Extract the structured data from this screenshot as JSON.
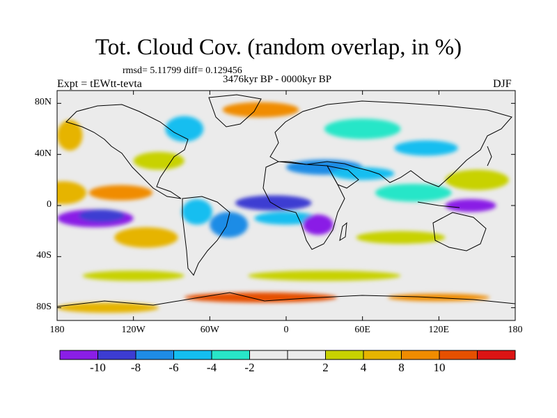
{
  "header": {
    "title": "Tot. Cloud Cov. (random overlap, in %)",
    "stats": "rmsd= 5.11799  diff= 0.129456",
    "experiment": "Expt = tEWtt-tevta",
    "period": "3476kyr BP - 0000kyr BP",
    "season": "DJF"
  },
  "axes": {
    "lat_ticks": [
      {
        "label": "80N",
        "lat": 80
      },
      {
        "label": "40N",
        "lat": 40
      },
      {
        "label": "0",
        "lat": 0
      },
      {
        "label": "40S",
        "lat": -40
      },
      {
        "label": "80S",
        "lat": -80
      }
    ],
    "lon_ticks": [
      {
        "label": "180",
        "lon": -180
      },
      {
        "label": "120W",
        "lon": -120
      },
      {
        "label": "60W",
        "lon": -60
      },
      {
        "label": "0",
        "lon": 0
      },
      {
        "label": "60E",
        "lon": 60
      },
      {
        "label": "120E",
        "lon": 120
      },
      {
        "label": "180",
        "lon": 180
      }
    ],
    "lat_range": [
      -90,
      90
    ],
    "lon_range": [
      -180,
      180
    ]
  },
  "colorbar": {
    "colors": [
      "#8a1ee6",
      "#3c3cd2",
      "#1e8ce6",
      "#14bef0",
      "#28e6c8",
      "#ebebeb",
      "#ebebeb",
      "#c8d200",
      "#e6b400",
      "#f08c00",
      "#e65000",
      "#dc1414"
    ],
    "labels": [
      "-10",
      "-8",
      "-6",
      "-4",
      "-2",
      "2",
      "4",
      "8",
      "10"
    ]
  },
  "map": {
    "background_color": "#ebebeb",
    "anomaly_regions": [
      {
        "lon": -175,
        "lat": 10,
        "rx": 18,
        "ry": 9,
        "level": "pos3"
      },
      {
        "lon": -150,
        "lat": -10,
        "rx": 30,
        "ry": 7,
        "level": "neg6"
      },
      {
        "lon": -145,
        "lat": -8,
        "rx": 18,
        "ry": 5,
        "level": "neg5"
      },
      {
        "lon": -130,
        "lat": 10,
        "rx": 25,
        "ry": 6,
        "level": "pos4"
      },
      {
        "lon": -100,
        "lat": 35,
        "rx": 20,
        "ry": 7,
        "level": "pos2"
      },
      {
        "lon": -110,
        "lat": -25,
        "rx": 25,
        "ry": 8,
        "level": "pos3"
      },
      {
        "lon": -70,
        "lat": -5,
        "rx": 12,
        "ry": 10,
        "level": "neg3"
      },
      {
        "lon": -45,
        "lat": -15,
        "rx": 15,
        "ry": 10,
        "level": "neg4"
      },
      {
        "lon": -10,
        "lat": 2,
        "rx": 30,
        "ry": 6,
        "level": "neg5"
      },
      {
        "lon": 0,
        "lat": -10,
        "rx": 25,
        "ry": 5,
        "level": "neg3"
      },
      {
        "lon": 25,
        "lat": -15,
        "rx": 12,
        "ry": 8,
        "level": "neg6"
      },
      {
        "lon": 30,
        "lat": 30,
        "rx": 30,
        "ry": 6,
        "level": "neg4"
      },
      {
        "lon": 60,
        "lat": 25,
        "rx": 25,
        "ry": 5,
        "level": "neg3"
      },
      {
        "lon": 100,
        "lat": 10,
        "rx": 30,
        "ry": 7,
        "level": "neg2"
      },
      {
        "lon": 145,
        "lat": 0,
        "rx": 20,
        "ry": 5,
        "level": "neg6"
      },
      {
        "lon": 150,
        "lat": 20,
        "rx": 25,
        "ry": 8,
        "level": "pos2"
      },
      {
        "lon": 90,
        "lat": -25,
        "rx": 35,
        "ry": 5,
        "level": "pos2"
      },
      {
        "lon": -170,
        "lat": 55,
        "rx": 10,
        "ry": 12,
        "level": "pos3"
      },
      {
        "lon": -80,
        "lat": 60,
        "rx": 15,
        "ry": 10,
        "level": "neg3"
      },
      {
        "lon": 60,
        "lat": 60,
        "rx": 30,
        "ry": 8,
        "level": "neg2"
      },
      {
        "lon": -20,
        "lat": 75,
        "rx": 30,
        "ry": 6,
        "level": "pos4"
      },
      {
        "lon": 110,
        "lat": 45,
        "rx": 25,
        "ry": 6,
        "level": "neg3"
      },
      {
        "lon": -120,
        "lat": -55,
        "rx": 40,
        "ry": 4,
        "level": "pos2"
      },
      {
        "lon": 30,
        "lat": -55,
        "rx": 60,
        "ry": 4,
        "level": "pos2"
      },
      {
        "lon": -20,
        "lat": -72,
        "rx": 60,
        "ry": 4,
        "level": "pos5"
      },
      {
        "lon": 120,
        "lat": -72,
        "rx": 40,
        "ry": 3,
        "level": "pos4"
      },
      {
        "lon": -140,
        "lat": -80,
        "rx": 40,
        "ry": 4,
        "level": "pos3"
      }
    ]
  }
}
